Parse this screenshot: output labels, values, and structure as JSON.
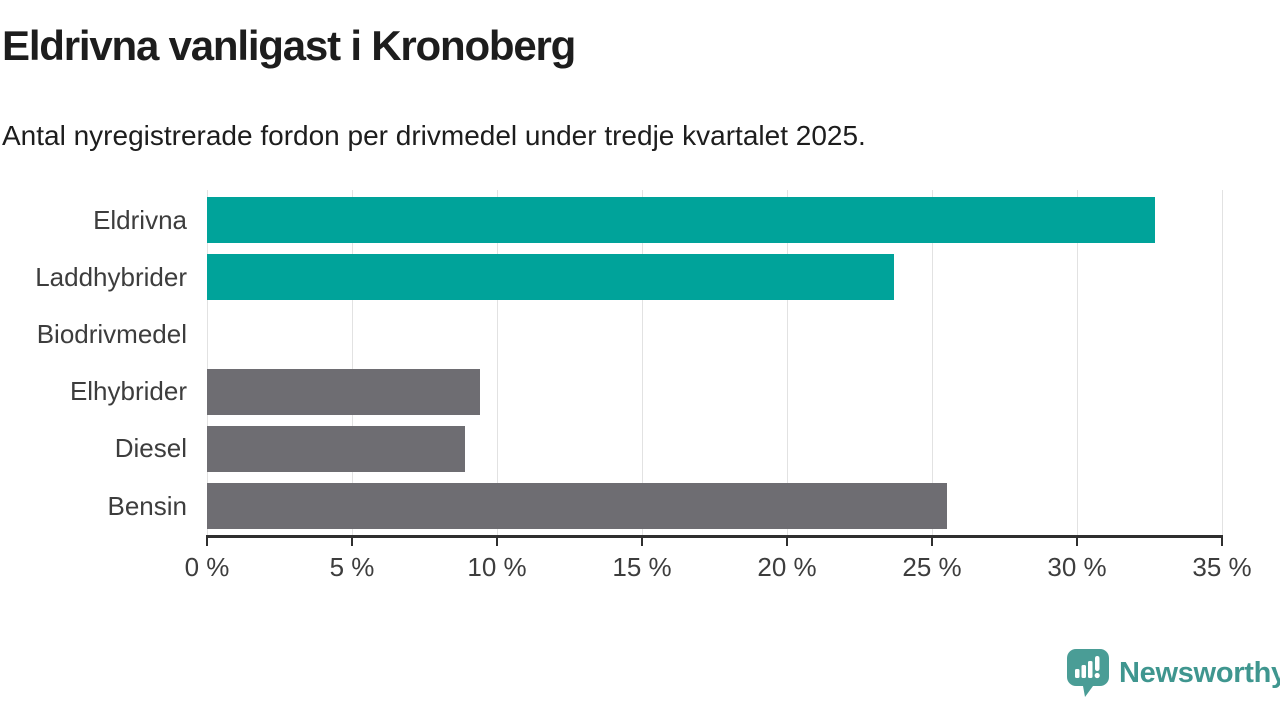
{
  "header": {
    "title": "Eldrivna vanligast i Kronoberg",
    "subtitle": "Antal nyregistrerade fordon per drivmedel under tredje kvartalet 2025."
  },
  "chart_data": {
    "type": "bar",
    "orientation": "horizontal",
    "title": "Eldrivna vanligast i Kronoberg",
    "subtitle": "Antal nyregistrerade fordon per drivmedel under tredje kvartalet 2025.",
    "categories": [
      "Eldrivna",
      "Laddhybrider",
      "Biodrivmedel",
      "Elhybrider",
      "Diesel",
      "Bensin"
    ],
    "values": [
      32.7,
      23.7,
      0,
      9.4,
      8.9,
      25.5
    ],
    "unit": "%",
    "bar_colors": [
      "#00a39a",
      "#00a39a",
      "#00a39a",
      "#6e6d72",
      "#6e6d72",
      "#6e6d72"
    ],
    "xlabel": "",
    "ylabel": "",
    "xlim": [
      0,
      35
    ],
    "x_ticks": [
      0,
      5,
      10,
      15,
      20,
      25,
      30,
      35
    ],
    "x_tick_labels": [
      "0 %",
      "5 %",
      "10 %",
      "15 %",
      "20 %",
      "25 %",
      "30 %",
      "35 %"
    ],
    "grid": "vertical-gridlines-on",
    "legend": "none"
  },
  "colors": {
    "accent_teal": "#00a39a",
    "neutral_gray": "#6e6d72",
    "logo_teal": "#4a9d96",
    "logo_text_teal": "#3f968f",
    "text_dark": "#1d1d1d",
    "axis_text": "#3d3d3d",
    "gridline": "#e2e2e2",
    "axis_line": "#2f2f2f",
    "background": "#ffffff"
  },
  "footer": {
    "brand": "Newsworthy",
    "logo_icon": "bar-chart-speech-bubble-icon"
  }
}
